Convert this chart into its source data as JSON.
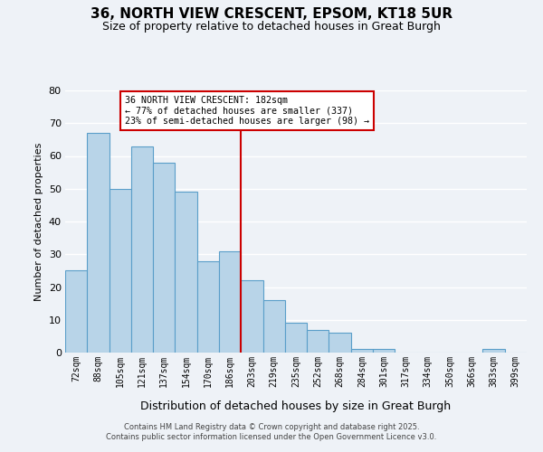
{
  "title": "36, NORTH VIEW CRESCENT, EPSOM, KT18 5UR",
  "subtitle": "Size of property relative to detached houses in Great Burgh",
  "xlabel": "Distribution of detached houses by size in Great Burgh",
  "ylabel": "Number of detached properties",
  "bar_labels": [
    "72sqm",
    "88sqm",
    "105sqm",
    "121sqm",
    "137sqm",
    "154sqm",
    "170sqm",
    "186sqm",
    "203sqm",
    "219sqm",
    "235sqm",
    "252sqm",
    "268sqm",
    "284sqm",
    "301sqm",
    "317sqm",
    "334sqm",
    "350sqm",
    "366sqm",
    "383sqm",
    "399sqm"
  ],
  "bar_values": [
    25,
    67,
    50,
    63,
    58,
    49,
    28,
    31,
    22,
    16,
    9,
    7,
    6,
    1,
    1,
    0,
    0,
    0,
    0,
    1,
    0
  ],
  "bar_color": "#b8d4e8",
  "bar_edge_color": "#5a9ec9",
  "vline_x_index": 7.5,
  "vline_color": "#cc0000",
  "annotation_title": "36 NORTH VIEW CRESCENT: 182sqm",
  "annotation_line1": "← 77% of detached houses are smaller (337)",
  "annotation_line2": "23% of semi-detached houses are larger (98) →",
  "annotation_box_color": "#cc0000",
  "ylim": [
    0,
    80
  ],
  "yticks": [
    0,
    10,
    20,
    30,
    40,
    50,
    60,
    70,
    80
  ],
  "background_color": "#eef2f7",
  "grid_color": "#ffffff",
  "footer_line1": "Contains HM Land Registry data © Crown copyright and database right 2025.",
  "footer_line2": "Contains public sector information licensed under the Open Government Licence v3.0."
}
